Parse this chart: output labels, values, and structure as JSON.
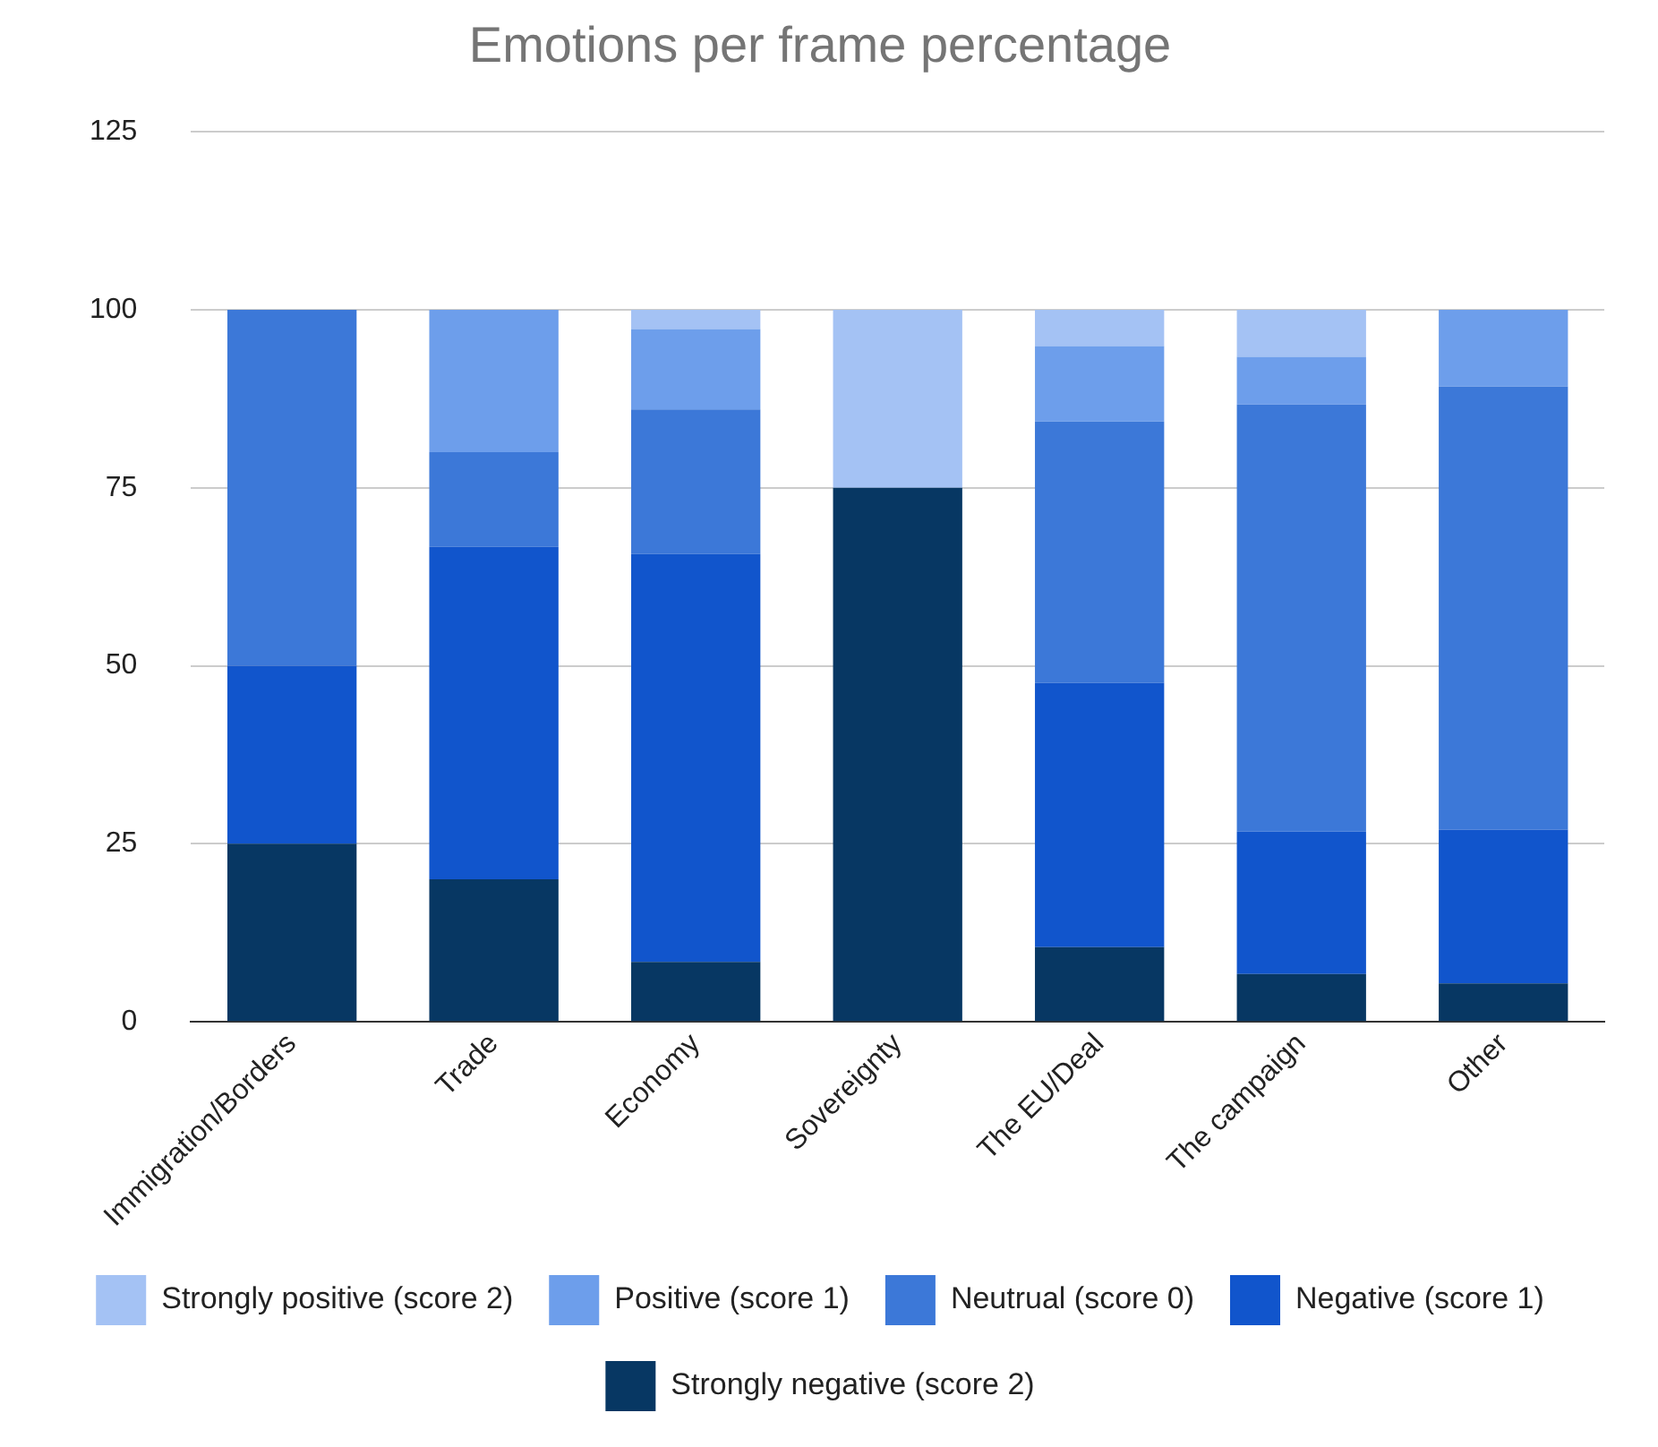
{
  "chart_data": {
    "type": "bar",
    "title": "Emotions per frame percentage",
    "stacked": true,
    "grid": "y",
    "legend": "bottom",
    "categories": [
      "Immigration/Borders",
      "Trade",
      "Economy",
      "Sovereignty",
      "The EU/Deal",
      "The campaign",
      "Other"
    ],
    "ylim": [
      0,
      125
    ],
    "yticks": [
      0,
      25,
      50,
      75,
      100,
      125
    ],
    "series": [
      {
        "name": "Strongly negative (score 2)",
        "color": "#073763",
        "values": [
          25,
          20,
          8.4,
          75,
          10.5,
          6.7,
          5.4
        ]
      },
      {
        "name": "Negative (score 1)",
        "color": "#1155cc",
        "values": [
          25,
          46.7,
          57.3,
          0,
          37.1,
          20,
          21.6
        ]
      },
      {
        "name": "Neutrual (score 0)",
        "color": "#3c78d8",
        "values": [
          50,
          13.3,
          20.3,
          0,
          36.7,
          60,
          62.2
        ]
      },
      {
        "name": "Positive (score 1)",
        "color": "#6d9eeb",
        "values": [
          0,
          20,
          11.3,
          0,
          10.6,
          6.7,
          10.8
        ]
      },
      {
        "name": "Strongly positive (score 2)",
        "color": "#a4c2f4",
        "values": [
          0,
          0,
          2.7,
          25,
          5.1,
          6.6,
          0
        ]
      }
    ]
  }
}
